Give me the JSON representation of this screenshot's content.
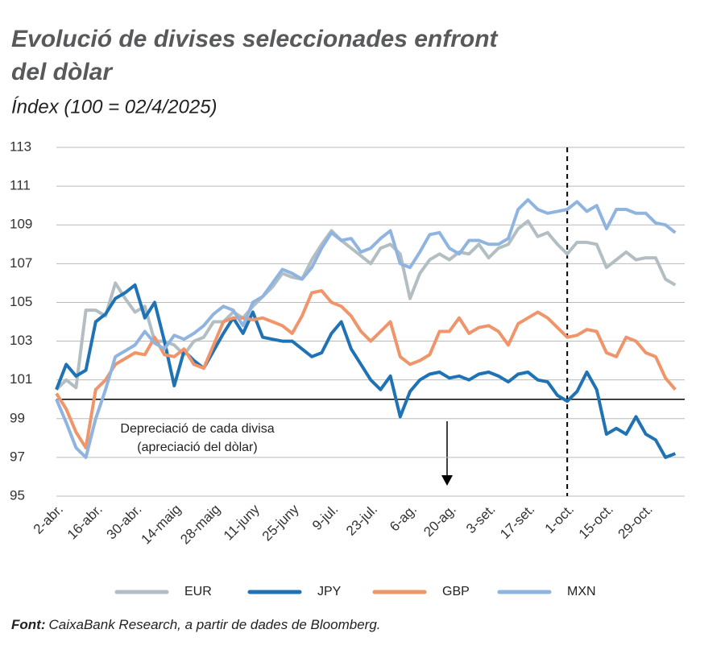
{
  "chart_data": {
    "type": "line",
    "title": [
      "Evolució de divises seleccionades enfront",
      "del dòlar"
    ],
    "subtitle": "Índex (100 = 02/4/2025)",
    "annotation": [
      "Depreciació de cada divisa",
      "(apreciació del dòlar)"
    ],
    "source_label": "Font:",
    "source": "CaixaBank Research, a partir de dades de Bloomberg.",
    "categories": [
      "2-abr.",
      null,
      null,
      null,
      "16-abr.",
      null,
      null,
      null,
      "30-abr.",
      null,
      null,
      null,
      "14-maig",
      null,
      null,
      null,
      "28-maig",
      null,
      null,
      null,
      "11-juny",
      null,
      null,
      null,
      "25-juny",
      null,
      null,
      null,
      "9-jul.",
      null,
      null,
      null,
      "23-jul.",
      null,
      null,
      null,
      "6-ag.",
      null,
      null,
      null,
      "20-ag.",
      null,
      null,
      null,
      "3-set.",
      null,
      null,
      null,
      "17-set.",
      null,
      null,
      null,
      "1-oct.",
      null,
      null,
      null,
      "15-oct.",
      null,
      null,
      null,
      "29-oct.",
      null,
      null,
      null
    ],
    "ylim": [
      95,
      113
    ],
    "yticks": [
      95,
      97,
      99,
      101,
      103,
      105,
      107,
      109,
      111,
      113
    ],
    "grid": true,
    "hline": 100,
    "vline_index": 52,
    "series": [
      {
        "name": "EUR",
        "color": "#b3bec3",
        "values": [
          100.5,
          101,
          100.6,
          104.6,
          104.6,
          104.3,
          106,
          105.2,
          104.5,
          104.8,
          103,
          103,
          102.8,
          102.3,
          103,
          103.2,
          104,
          104,
          104.5,
          104.2,
          104.8,
          105.3,
          105.8,
          106.5,
          106.3,
          106.2,
          107.2,
          108,
          108.7,
          108.2,
          107.8,
          107.4,
          107,
          107.8,
          108,
          107.5,
          105.2,
          106.5,
          107.2,
          107.5,
          107.2,
          107.6,
          107.5,
          108,
          107.3,
          107.8,
          108,
          108.8,
          109.2,
          108.4,
          108.6,
          108,
          107.5,
          108.1,
          108.1,
          108,
          106.8,
          107.2,
          107.6,
          107.2,
          107.3,
          107.3,
          106.2,
          105.9
        ]
      },
      {
        "name": "JPY",
        "color": "#1f73b4",
        "values": [
          100.5,
          101.8,
          101.2,
          101.5,
          104,
          104.4,
          105.2,
          105.5,
          105.9,
          104.2,
          105,
          103,
          100.7,
          102.5,
          102,
          101.6,
          102.5,
          103.4,
          104.2,
          103.4,
          104.5,
          103.2,
          103.1,
          103,
          103,
          102.6,
          102.2,
          102.4,
          103.4,
          104,
          102.6,
          101.8,
          101,
          100.5,
          101.2,
          99.1,
          100.4,
          101,
          101.3,
          101.4,
          101.1,
          101.2,
          101,
          101.3,
          101.4,
          101.2,
          100.9,
          101.3,
          101.4,
          101,
          100.9,
          100.2,
          99.9,
          100.4,
          101.4,
          100.5,
          98.2,
          98.5,
          98.2,
          99.1,
          98.2,
          97.9,
          97,
          97.2
        ]
      },
      {
        "name": "GBP",
        "color": "#f0956a",
        "values": [
          100.3,
          99.5,
          98.3,
          97.5,
          100.5,
          101,
          101.8,
          102.1,
          102.4,
          102.3,
          103.2,
          102.3,
          102.2,
          102.6,
          101.8,
          101.6,
          102.8,
          104,
          104.2,
          104.2,
          104.1,
          104.2,
          104,
          103.8,
          103.4,
          104.3,
          105.5,
          105.6,
          105,
          104.8,
          104.3,
          103.5,
          103,
          103.5,
          104,
          102.2,
          101.8,
          102,
          102.3,
          103.5,
          103.5,
          104.2,
          103.4,
          103.7,
          103.8,
          103.5,
          102.8,
          103.9,
          104.2,
          104.5,
          104.2,
          103.7,
          103.2,
          103.3,
          103.6,
          103.5,
          102.4,
          102.2,
          103.2,
          103,
          102.4,
          102.2,
          101.1,
          100.5
        ]
      },
      {
        "name": "MXN",
        "color": "#8fb4e0",
        "values": [
          100,
          98.8,
          97.5,
          97,
          99,
          100.5,
          102.2,
          102.5,
          102.8,
          103.5,
          102.9,
          102.6,
          103.3,
          103.1,
          103.4,
          103.8,
          104.4,
          104.8,
          104.6,
          103.8,
          105,
          105.3,
          106,
          106.7,
          106.5,
          106.2,
          106.8,
          107.8,
          108.6,
          108.2,
          108.3,
          107.6,
          107.8,
          108.3,
          108.7,
          107,
          106.8,
          107.6,
          108.5,
          108.6,
          107.8,
          107.5,
          108.2,
          108.2,
          108,
          108,
          108.3,
          109.8,
          110.3,
          109.8,
          109.6,
          109.7,
          109.8,
          110.2,
          109.7,
          110,
          108.8,
          109.8,
          109.8,
          109.6,
          109.6,
          109.1,
          109,
          108.6
        ]
      }
    ]
  }
}
